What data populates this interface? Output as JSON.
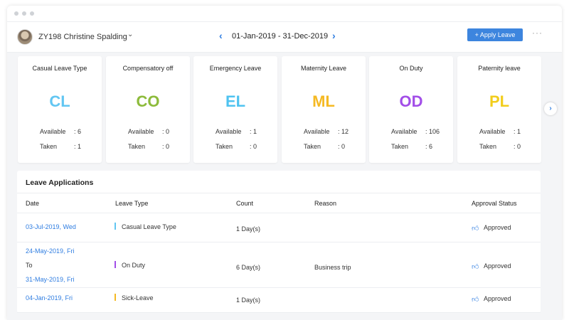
{
  "header": {
    "user_name": "ZY198 Christine Spalding",
    "date_range": "01-Jan-2019 - 31-Dec-2019",
    "apply_label": "Apply Leave",
    "apply_icon": "+",
    "more": "···",
    "prev": "‹",
    "next": "›",
    "dropdown": "⌄"
  },
  "cards": [
    {
      "title": "Casual Leave Type",
      "code": "CL",
      "color": "#62c6f2",
      "available_label": "Available",
      "available": ": 6",
      "taken_label": "Taken",
      "taken": ": 1"
    },
    {
      "title": "Compensatory off",
      "code": "CO",
      "color": "#8dbb3b",
      "available_label": "Available",
      "available": ": 0",
      "taken_label": "Taken",
      "taken": ": 0"
    },
    {
      "title": "Emergency Leave",
      "code": "EL",
      "color": "#4fc3f0",
      "available_label": "Available",
      "available": ": 1",
      "taken_label": "Taken",
      "taken": ": 0"
    },
    {
      "title": "Maternity Leave",
      "code": "ML",
      "color": "#f5b923",
      "available_label": "Available",
      "available": ": 12",
      "taken_label": "Taken",
      "taken": ": 0"
    },
    {
      "title": "On Duty",
      "code": "OD",
      "color": "#a24ee8",
      "available_label": "Available",
      "available": ": 106",
      "taken_label": "Taken",
      "taken": ": 6"
    },
    {
      "title": "Paternity leave",
      "code": "PL",
      "color": "#f2cd1c",
      "available_label": "Available",
      "available": ": 1",
      "taken_label": "Taken",
      "taken": ": 0"
    }
  ],
  "cards_next": "›",
  "applications": {
    "title": "Leave Applications",
    "columns": [
      "Date",
      "Leave Type",
      "Count",
      "Reason",
      "Approval Status"
    ],
    "rows": [
      {
        "date": "03-Jul-2019, Wed",
        "date_to_label": "",
        "date_end": "",
        "type": "Casual Leave Type",
        "type_color": "#62c6f2",
        "count": "1 Day(s)",
        "reason": "",
        "status": "Approved"
      },
      {
        "date": "24-May-2019, Fri",
        "date_to_label": "To",
        "date_end": "31-May-2019, Fri",
        "type": "On Duty",
        "type_color": "#a24ee8",
        "count": "6 Day(s)",
        "reason": "Business trip",
        "status": "Approved"
      },
      {
        "date": "04-Jan-2019, Fri",
        "date_to_label": "",
        "date_end": "",
        "type": "Sick-Leave",
        "type_color": "#f5b923",
        "count": "1 Day(s)",
        "reason": "",
        "status": "Approved"
      }
    ]
  },
  "icons": {
    "thumb": "thumbs-up-icon"
  }
}
